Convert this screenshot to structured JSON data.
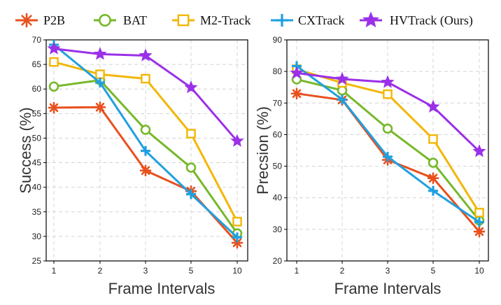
{
  "legend": [
    {
      "name": "P2B",
      "color": "#E8501E",
      "marker": "asterisk"
    },
    {
      "name": "BAT",
      "color": "#76B82A",
      "marker": "circle"
    },
    {
      "name": "M2-Track",
      "color": "#F2B705",
      "marker": "square"
    },
    {
      "name": "CXTrack",
      "color": "#1FA0DF",
      "marker": "plus"
    },
    {
      "name": "HVTrack (Ours)",
      "color": "#9B30E8",
      "marker": "star"
    }
  ],
  "chart_data": [
    {
      "type": "line",
      "categories": [
        "1",
        "2",
        "3",
        "5",
        "10"
      ],
      "xlabel": "Frame Intervals",
      "ylabel": "Success (%)",
      "ylim": [
        25,
        70
      ],
      "yticks": [
        25,
        30,
        35,
        40,
        45,
        50,
        55,
        60,
        65,
        70
      ],
      "grid": true,
      "series": [
        {
          "name": "P2B",
          "values": [
            56.2,
            56.3,
            43.4,
            39.2,
            28.7
          ]
        },
        {
          "name": "BAT",
          "values": [
            60.5,
            61.8,
            51.7,
            44.0,
            30.6
          ]
        },
        {
          "name": "M2-Track",
          "values": [
            65.5,
            63.0,
            62.1,
            50.9,
            33.0
          ]
        },
        {
          "name": "CXTrack",
          "values": [
            69.0,
            61.3,
            47.4,
            38.6,
            29.8
          ]
        },
        {
          "name": "HVTrack (Ours)",
          "values": [
            68.2,
            67.1,
            66.8,
            60.3,
            49.4
          ]
        }
      ]
    },
    {
      "type": "line",
      "categories": [
        "1",
        "2",
        "3",
        "5",
        "10"
      ],
      "xlabel": "Frame Intervals",
      "ylabel": "Precsion (%)",
      "ylim": [
        20,
        90
      ],
      "yticks": [
        20,
        30,
        40,
        50,
        60,
        70,
        80,
        90
      ],
      "grid": true,
      "series": [
        {
          "name": "P2B",
          "values": [
            73.0,
            71.0,
            52.0,
            46.2,
            29.3
          ]
        },
        {
          "name": "BAT",
          "values": [
            77.5,
            74.0,
            61.9,
            51.1,
            32.8
          ]
        },
        {
          "name": "M2-Track",
          "values": [
            80.7,
            76.4,
            72.8,
            58.6,
            35.3
          ]
        },
        {
          "name": "CXTrack",
          "values": [
            81.7,
            71.1,
            53.0,
            42.2,
            32.3
          ]
        },
        {
          "name": "HVTrack (Ours)",
          "values": [
            79.5,
            77.6,
            76.6,
            68.8,
            54.7
          ]
        }
      ]
    }
  ]
}
